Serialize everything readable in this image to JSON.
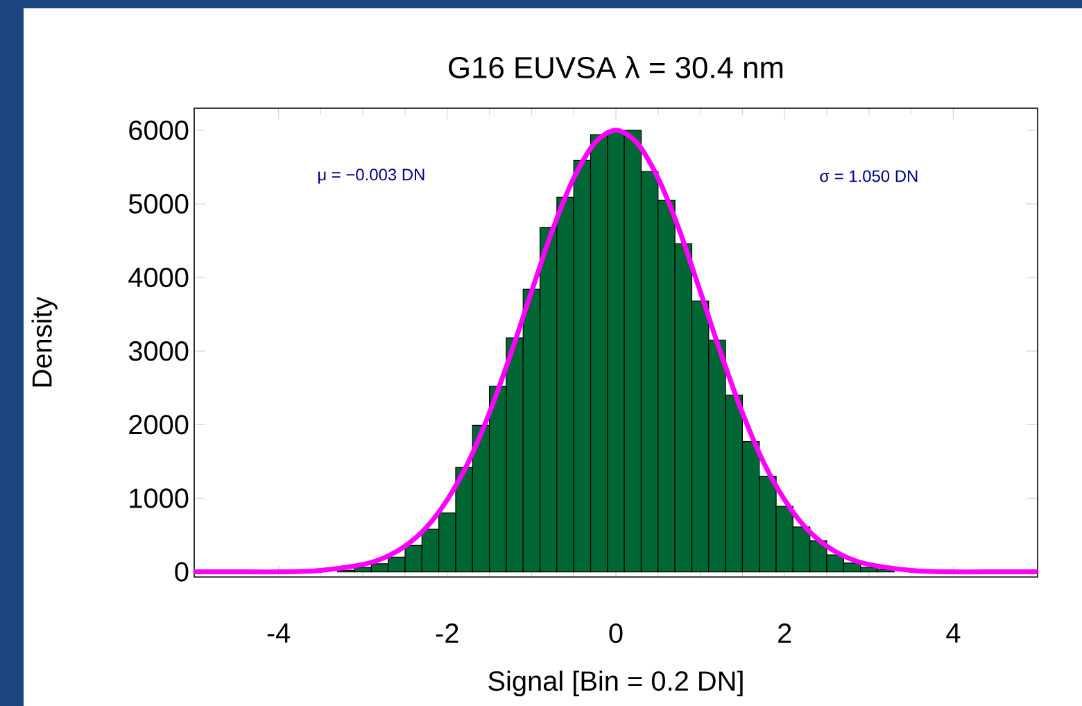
{
  "chart_data": {
    "type": "histogram",
    "title": "G16 EUVSA λ = 30.4 nm",
    "xlabel": "Signal [Bin = 0.2 DN]",
    "ylabel": "Density",
    "annotations": [
      "μ = −0.003 DN",
      "σ = 1.050 DN"
    ],
    "xlim": [
      -5,
      5
    ],
    "ylim": [
      -70,
      6300
    ],
    "xticks": [
      -4,
      -2,
      0,
      2,
      4
    ],
    "yticks": [
      0,
      1000,
      2000,
      3000,
      4000,
      5000,
      6000
    ],
    "series": [
      {
        "color": "#006633",
        "bins": [
          -3.3,
          -3.1,
          -2.9,
          -2.7,
          -2.5,
          -2.3,
          -2.1,
          -1.9,
          -1.7,
          -1.5,
          -1.3,
          -1.1,
          -0.9,
          -0.7,
          -0.5,
          -0.3,
          -0.1,
          0.1,
          0.3,
          0.5,
          0.7,
          0.9,
          1.1,
          1.3,
          1.5,
          1.7,
          1.9,
          2.1,
          2.3,
          2.5,
          2.7,
          2.9,
          3.1,
          3.3
        ],
        "values": [
          20,
          60,
          110,
          200,
          360,
          580,
          800,
          1420,
          1990,
          2520,
          3180,
          3840,
          4680,
          5090,
          5590,
          5940,
          6000,
          6000,
          5440,
          5050,
          4460,
          3680,
          3150,
          2400,
          1770,
          1300,
          890,
          610,
          420,
          230,
          120,
          60,
          30
        ]
      },
      {
        "type": "line",
        "color": "#ff00ff",
        "x": [
          -5,
          -4.5,
          -4,
          -3.5,
          -3,
          -2.75,
          -2.5,
          -2.25,
          -2,
          -1.75,
          -1.5,
          -1.25,
          -1,
          -0.75,
          -0.5,
          -0.25,
          0,
          0.25,
          0.5,
          0.75,
          1,
          1.25,
          1.5,
          1.75,
          2,
          2.25,
          2.5,
          2.75,
          3,
          3.5,
          4,
          4.5,
          5
        ],
        "values": [
          0,
          0,
          0,
          20,
          100,
          190,
          350,
          600,
          980,
          1490,
          2160,
          2950,
          3810,
          4650,
          5350,
          5830,
          6000,
          5830,
          5350,
          4650,
          3810,
          2950,
          2160,
          1490,
          980,
          600,
          350,
          190,
          100,
          20,
          0,
          0,
          0
        ]
      }
    ]
  }
}
